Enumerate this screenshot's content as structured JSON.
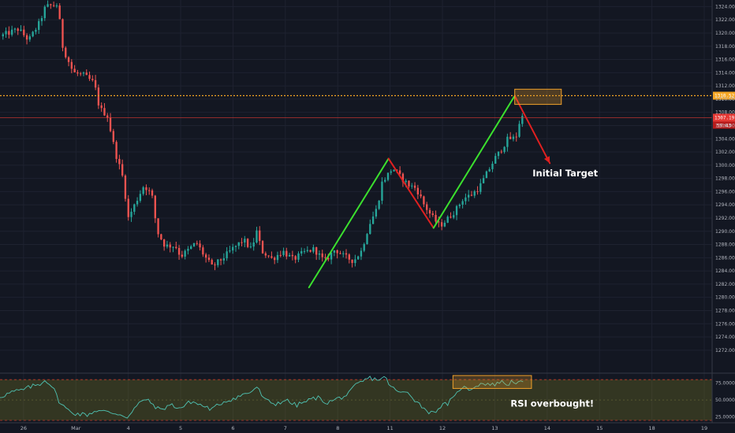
{
  "colors": {
    "background": "#131722",
    "grid": "#1e2230",
    "up": "#26a69a",
    "down": "#ef5350",
    "resistance": "#f5a623",
    "price_line": "#e53935",
    "rsi_line": "#4fc3b3",
    "impulse": "#3be02e",
    "correction": "#e02020",
    "zone": "#f0a02a"
  },
  "chart_data": [
    {
      "type": "candlestick",
      "title": "",
      "y_axis": {
        "range": [
          1269,
          1325
        ],
        "ticks": [
          "1324.00",
          "1322.00",
          "1320.00",
          "1318.00",
          "1316.00",
          "1314.00",
          "1312.00",
          "1310.00",
          "1308.00",
          "1306.00",
          "1304.00",
          "1302.00",
          "1300.00",
          "1298.00",
          "1296.00",
          "1294.00",
          "1292.00",
          "1290.00",
          "1288.00",
          "1286.00",
          "1284.00",
          "1282.00",
          "1280.00",
          "1278.00",
          "1276.00",
          "1274.00",
          "1272.00"
        ]
      },
      "x_axis": {
        "range": [
          -0.45,
          13.15
        ],
        "ticks": [
          {
            "label": "26",
            "x": 0
          },
          {
            "label": "Mar",
            "x": 1
          },
          {
            "label": "4",
            "x": 2
          },
          {
            "label": "5",
            "x": 3
          },
          {
            "label": "6",
            "x": 4
          },
          {
            "label": "7",
            "x": 5
          },
          {
            "label": "8",
            "x": 6
          },
          {
            "label": "11",
            "x": 7
          },
          {
            "label": "12",
            "x": 8
          },
          {
            "label": "13",
            "x": 9
          },
          {
            "label": "14",
            "x": 10
          },
          {
            "label": "15",
            "x": 11
          },
          {
            "label": "18",
            "x": 12
          },
          {
            "label": "19",
            "x": 13
          }
        ]
      },
      "close_path": [
        [
          -0.45,
          1319.5
        ],
        [
          -0.1,
          1320.6
        ],
        [
          0.1,
          1318.9
        ],
        [
          0.3,
          1321.5
        ],
        [
          0.42,
          1324.0
        ],
        [
          0.65,
          1324.3
        ],
        [
          0.75,
          1317.8
        ],
        [
          0.95,
          1314.0
        ],
        [
          1.15,
          1313.6
        ],
        [
          1.35,
          1312.4
        ],
        [
          1.45,
          1308.6
        ],
        [
          1.6,
          1307.5
        ],
        [
          1.75,
          1302.0
        ],
        [
          1.9,
          1298.0
        ],
        [
          2.0,
          1292.0
        ],
        [
          2.15,
          1294.5
        ],
        [
          2.3,
          1297.0
        ],
        [
          2.45,
          1295.5
        ],
        [
          2.55,
          1290.0
        ],
        [
          2.7,
          1287.8
        ],
        [
          2.9,
          1287.8
        ],
        [
          3.0,
          1286.2
        ],
        [
          3.15,
          1287.2
        ],
        [
          3.3,
          1288.3
        ],
        [
          3.45,
          1286.3
        ],
        [
          3.6,
          1284.6
        ],
        [
          3.8,
          1285.9
        ],
        [
          4.0,
          1287.4
        ],
        [
          4.2,
          1288.7
        ],
        [
          4.35,
          1287.2
        ],
        [
          4.45,
          1290.0
        ],
        [
          4.55,
          1287.0
        ],
        [
          4.75,
          1285.8
        ],
        [
          4.95,
          1287.0
        ],
        [
          5.15,
          1285.7
        ],
        [
          5.35,
          1286.8
        ],
        [
          5.55,
          1287.3
        ],
        [
          5.75,
          1285.4
        ],
        [
          5.95,
          1287.3
        ],
        [
          6.1,
          1286.3
        ],
        [
          6.3,
          1285.5
        ],
        [
          6.45,
          1287.0
        ],
        [
          6.6,
          1291.0
        ],
        [
          6.75,
          1293.5
        ],
        [
          6.85,
          1297.5
        ],
        [
          6.95,
          1298.5
        ],
        [
          7.05,
          1299.6
        ],
        [
          7.2,
          1298.2
        ],
        [
          7.35,
          1297.0
        ],
        [
          7.5,
          1296.5
        ],
        [
          7.65,
          1294.0
        ],
        [
          7.8,
          1292.2
        ],
        [
          7.95,
          1290.8
        ],
        [
          8.1,
          1291.9
        ],
        [
          8.25,
          1293.2
        ],
        [
          8.4,
          1295.0
        ],
        [
          8.55,
          1295.5
        ],
        [
          8.7,
          1296.6
        ],
        [
          8.85,
          1298.8
        ],
        [
          9.0,
          1301.0
        ],
        [
          9.1,
          1302.1
        ],
        [
          9.25,
          1304.0
        ],
        [
          9.4,
          1304.1
        ],
        [
          9.5,
          1307.5
        ],
        [
          9.55,
          1307.2
        ]
      ],
      "levels": {
        "resistance": 1310.52,
        "last_price": 1307.19,
        "countdown": "59:43"
      },
      "drawings": {
        "impulse_1": [
          [
            5.45,
            1281.5
          ],
          [
            6.97,
            1301.0
          ]
        ],
        "correction": [
          [
            6.97,
            1301.0
          ],
          [
            7.83,
            1290.5
          ]
        ],
        "impulse_2": [
          [
            7.83,
            1290.5
          ],
          [
            9.38,
            1310.5
          ]
        ],
        "projection": [
          [
            9.38,
            1310.5
          ],
          [
            10.05,
            1300.3
          ]
        ],
        "target_zone": {
          "x": [
            9.38,
            10.27
          ],
          "y": [
            1309.2,
            1311.5
          ]
        }
      },
      "annotations": [
        {
          "text": "Initial Target",
          "x": 9.72,
          "y": 1298.3
        }
      ]
    },
    {
      "type": "line",
      "title": "",
      "y_axis": {
        "range": [
          20,
          86
        ],
        "ticks": [
          "75.0000",
          "50.0000",
          "25.0000"
        ]
      },
      "band": {
        "upper": 80,
        "lower": 20
      },
      "rsi_path": [
        [
          -0.45,
          55
        ],
        [
          -0.2,
          62
        ],
        [
          0.0,
          65
        ],
        [
          0.15,
          70
        ],
        [
          0.3,
          73
        ],
        [
          0.42,
          80
        ],
        [
          0.55,
          70
        ],
        [
          0.7,
          45
        ],
        [
          0.85,
          35
        ],
        [
          1.0,
          30
        ],
        [
          1.2,
          28
        ],
        [
          1.4,
          35
        ],
        [
          1.6,
          32
        ],
        [
          1.8,
          30
        ],
        [
          2.0,
          25
        ],
        [
          2.15,
          40
        ],
        [
          2.3,
          52
        ],
        [
          2.45,
          45
        ],
        [
          2.6,
          35
        ],
        [
          2.8,
          43
        ],
        [
          3.0,
          38
        ],
        [
          3.2,
          48
        ],
        [
          3.4,
          42
        ],
        [
          3.6,
          36
        ],
        [
          3.8,
          47
        ],
        [
          4.0,
          52
        ],
        [
          4.2,
          58
        ],
        [
          4.35,
          62
        ],
        [
          4.45,
          70
        ],
        [
          4.6,
          50
        ],
        [
          4.8,
          44
        ],
        [
          5.0,
          50
        ],
        [
          5.2,
          42
        ],
        [
          5.4,
          48
        ],
        [
          5.6,
          54
        ],
        [
          5.8,
          46
        ],
        [
          6.0,
          52
        ],
        [
          6.2,
          58
        ],
        [
          6.35,
          72
        ],
        [
          6.5,
          78
        ],
        [
          6.6,
          83
        ],
        [
          6.75,
          80
        ],
        [
          6.9,
          83
        ],
        [
          7.05,
          67
        ],
        [
          7.2,
          60
        ],
        [
          7.35,
          62
        ],
        [
          7.5,
          48
        ],
        [
          7.65,
          38
        ],
        [
          7.8,
          30
        ],
        [
          7.95,
          40
        ],
        [
          8.1,
          45
        ],
        [
          8.25,
          55
        ],
        [
          8.35,
          70
        ],
        [
          8.5,
          65
        ],
        [
          8.65,
          72
        ],
        [
          8.8,
          75
        ],
        [
          8.95,
          72
        ],
        [
          9.1,
          77
        ],
        [
          9.25,
          73
        ],
        [
          9.35,
          79
        ],
        [
          9.45,
          74
        ],
        [
          9.55,
          77
        ]
      ],
      "drawings": {
        "overbought_box": {
          "x": [
            8.2,
            9.7
          ],
          "y": [
            67,
            86
          ]
        }
      },
      "annotations": [
        {
          "text": "RSI overbought!",
          "x": 9.3,
          "y": 40
        }
      ]
    }
  ]
}
